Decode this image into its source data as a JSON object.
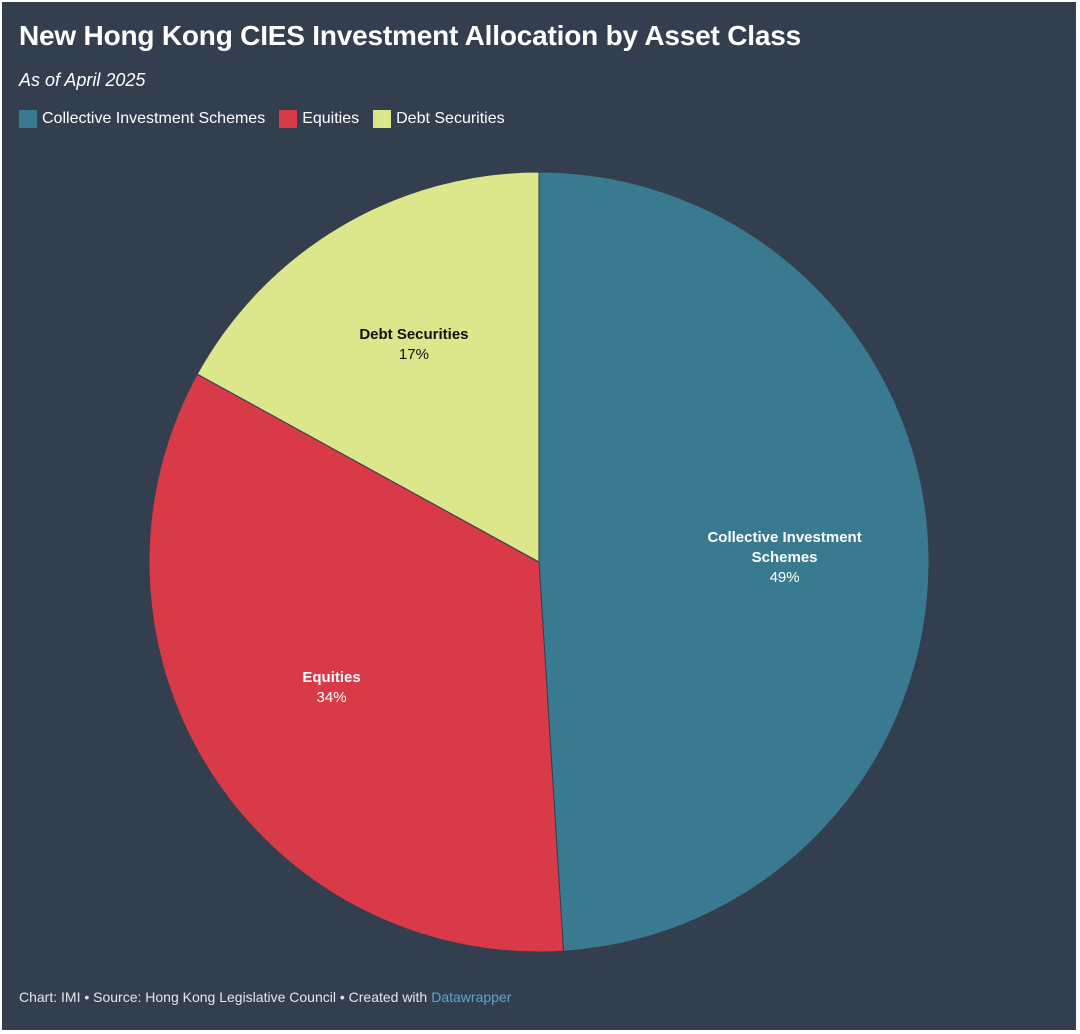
{
  "chart_data": {
    "type": "pie",
    "title": "New Hong Kong CIES Investment Allocation by Asset Class",
    "subtitle": "As of April 2025",
    "categories": [
      "Collective Investment Schemes",
      "Equities",
      "Debt Securities"
    ],
    "values": [
      49,
      34,
      17
    ],
    "value_labels": [
      "49%",
      "34%",
      "17%"
    ],
    "colors": [
      "#3a7a91",
      "#d93a48",
      "#dce68a"
    ],
    "legend": "top-left",
    "footer": {
      "text": "Chart: IMI • Source: Hong Kong Legislative Council • Created with",
      "link": "Datawrapper"
    }
  }
}
